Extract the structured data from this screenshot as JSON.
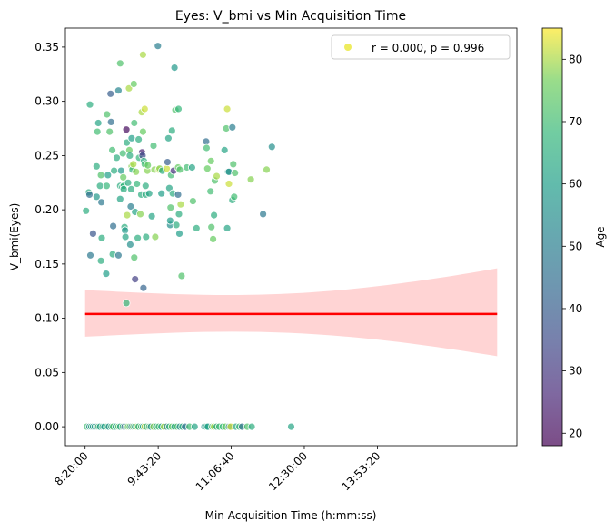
{
  "chart_data": {
    "type": "scatter",
    "title": "Eyes: V_bmi vs Min Acquisition Time",
    "xlabel": "Min Acquisition Time (h:mm:ss)",
    "ylabel": "V_bmi(Eyes)",
    "colorbar_label": "Age",
    "legend": {
      "text": "r = 0.000, p = 0.996",
      "placement": "top-right"
    },
    "xlim": [
      "7:57:30",
      "16:32:30"
    ],
    "ylim": [
      -0.0175,
      0.3675
    ],
    "x_ticks": [
      "8:20:00",
      "9:43:20",
      "11:06:40",
      "12:30:00",
      "13:53:20"
    ],
    "y_ticks": [
      "0.00",
      "0.05",
      "0.10",
      "0.15",
      "0.20",
      "0.25",
      "0.30",
      "0.35"
    ],
    "colorbar": {
      "min": 18,
      "max": 85,
      "ticks": [
        "20",
        "30",
        "40",
        "50",
        "60",
        "70",
        "80"
      ],
      "colormap": "viridis"
    },
    "grid": false,
    "regression": {
      "color": "#ff0000",
      "band_color": "#ffcccc",
      "x": [
        "8:20:00",
        "16:10:00"
      ],
      "y": [
        0.104,
        0.104
      ],
      "ci_lower": [
        0.083,
        0.065
      ],
      "ci_upper": [
        0.126,
        0.146
      ]
    },
    "points": [
      {
        "x": "8:21:00",
        "y": 0.199,
        "age": 65
      },
      {
        "x": "8:24:00",
        "y": 0.216,
        "age": 65
      },
      {
        "x": "8:25:00",
        "y": 0.214,
        "age": 45
      },
      {
        "x": "8:25:30",
        "y": 0.297,
        "age": 65
      },
      {
        "x": "8:26:00",
        "y": 0.158,
        "age": 48
      },
      {
        "x": "8:29:00",
        "y": 0.178,
        "age": 38
      },
      {
        "x": "8:33:00",
        "y": 0.24,
        "age": 65
      },
      {
        "x": "8:33:00",
        "y": 0.212,
        "age": 58
      },
      {
        "x": "8:34:00",
        "y": 0.272,
        "age": 70
      },
      {
        "x": "8:35:00",
        "y": 0.28,
        "age": 62
      },
      {
        "x": "8:37:00",
        "y": 0.222,
        "age": 65
      },
      {
        "x": "8:38:00",
        "y": 0.232,
        "age": 72
      },
      {
        "x": "8:38:00",
        "y": 0.153,
        "age": 65
      },
      {
        "x": "8:38:30",
        "y": 0.207,
        "age": 48
      },
      {
        "x": "8:39:00",
        "y": 0.174,
        "age": 65
      },
      {
        "x": "8:44:00",
        "y": 0.141,
        "age": 60
      },
      {
        "x": "8:44:30",
        "y": 0.222,
        "age": 68
      },
      {
        "x": "8:45:00",
        "y": 0.288,
        "age": 72
      },
      {
        "x": "8:46:00",
        "y": 0.232,
        "age": 60
      },
      {
        "x": "8:48:00",
        "y": 0.272,
        "age": 72
      },
      {
        "x": "8:49:00",
        "y": 0.307,
        "age": 40
      },
      {
        "x": "8:49:30",
        "y": 0.281,
        "age": 45
      },
      {
        "x": "8:51:00",
        "y": 0.255,
        "age": 70
      },
      {
        "x": "8:51:30",
        "y": 0.159,
        "age": 65
      },
      {
        "x": "8:52:00",
        "y": 0.185,
        "age": 45
      },
      {
        "x": "8:53:00",
        "y": 0.236,
        "age": 65
      },
      {
        "x": "8:56:00",
        "y": 0.248,
        "age": 65
      },
      {
        "x": "8:58:00",
        "y": 0.158,
        "age": 48
      },
      {
        "x": "8:58:00",
        "y": 0.31,
        "age": 52
      },
      {
        "x": "9:00:00",
        "y": 0.335,
        "age": 72
      },
      {
        "x": "9:00:00",
        "y": 0.21,
        "age": 62
      },
      {
        "x": "9:00:00",
        "y": 0.222,
        "age": 65
      },
      {
        "x": "9:01:00",
        "y": 0.236,
        "age": 58
      },
      {
        "x": "9:02:30",
        "y": 0.221,
        "age": 65
      },
      {
        "x": "9:03:00",
        "y": 0.252,
        "age": 70
      },
      {
        "x": "9:03:30",
        "y": 0.23,
        "age": 75
      },
      {
        "x": "9:04:00",
        "y": 0.222,
        "age": 68
      },
      {
        "x": "9:04:00",
        "y": 0.219,
        "age": 65
      },
      {
        "x": "9:05:00",
        "y": 0.184,
        "age": 65
      },
      {
        "x": "9:05:30",
        "y": 0.181,
        "age": 58
      },
      {
        "x": "9:06:00",
        "y": 0.175,
        "age": 62
      },
      {
        "x": "9:07:00",
        "y": 0.114,
        "age": 68
      },
      {
        "x": "9:07:00",
        "y": 0.274,
        "age": 20
      },
      {
        "x": "9:07:30",
        "y": 0.262,
        "age": 65
      },
      {
        "x": "9:08:00",
        "y": 0.195,
        "age": 80
      },
      {
        "x": "9:09:00",
        "y": 0.225,
        "age": 65
      },
      {
        "x": "9:10:00",
        "y": 0.312,
        "age": 80
      },
      {
        "x": "9:10:30",
        "y": 0.255,
        "age": 75
      },
      {
        "x": "9:11:00",
        "y": 0.25,
        "age": 65
      },
      {
        "x": "9:11:30",
        "y": 0.168,
        "age": 55
      },
      {
        "x": "9:12:00",
        "y": 0.203,
        "age": 50
      },
      {
        "x": "9:12:30",
        "y": 0.219,
        "age": 65
      },
      {
        "x": "9:13:00",
        "y": 0.24,
        "age": 78
      },
      {
        "x": "9:13:00",
        "y": 0.266,
        "age": 60
      },
      {
        "x": "9:14:00",
        "y": 0.237,
        "age": 68
      },
      {
        "x": "9:15:00",
        "y": 0.242,
        "age": 80
      },
      {
        "x": "9:15:30",
        "y": 0.316,
        "age": 75
      },
      {
        "x": "9:16:00",
        "y": 0.28,
        "age": 70
      },
      {
        "x": "9:16:00",
        "y": 0.156,
        "age": 72
      },
      {
        "x": "9:17:00",
        "y": 0.136,
        "age": 32
      },
      {
        "x": "9:17:00",
        "y": 0.198,
        "age": 62
      },
      {
        "x": "9:18:00",
        "y": 0.235,
        "age": 78
      },
      {
        "x": "9:19:00",
        "y": 0.224,
        "age": 68
      },
      {
        "x": "9:20:00",
        "y": 0.174,
        "age": 65
      },
      {
        "x": "9:21:00",
        "y": 0.265,
        "age": 65
      },
      {
        "x": "9:21:30",
        "y": 0.248,
        "age": 68
      },
      {
        "x": "9:23:00",
        "y": 0.196,
        "age": 78
      },
      {
        "x": "9:24:00",
        "y": 0.214,
        "age": 65
      },
      {
        "x": "9:24:30",
        "y": 0.29,
        "age": 80
      },
      {
        "x": "9:25:00",
        "y": 0.253,
        "age": 25
      },
      {
        "x": "9:25:30",
        "y": 0.25,
        "age": 35
      },
      {
        "x": "9:26:00",
        "y": 0.343,
        "age": 80
      },
      {
        "x": "9:26:00",
        "y": 0.272,
        "age": 75
      },
      {
        "x": "9:26:30",
        "y": 0.128,
        "age": 42
      },
      {
        "x": "9:27:00",
        "y": 0.245,
        "age": 65
      },
      {
        "x": "9:28:00",
        "y": 0.293,
        "age": 82
      },
      {
        "x": "9:28:00",
        "y": 0.242,
        "age": 70
      },
      {
        "x": "9:29:00",
        "y": 0.222,
        "age": 65
      },
      {
        "x": "9:29:00",
        "y": 0.214,
        "age": 65
      },
      {
        "x": "9:29:30",
        "y": 0.175,
        "age": 65
      },
      {
        "x": "9:31:00",
        "y": 0.236,
        "age": 78
      },
      {
        "x": "9:31:30",
        "y": 0.241,
        "age": 75
      },
      {
        "x": "9:33:00",
        "y": 0.215,
        "age": 62
      },
      {
        "x": "9:36:00",
        "y": 0.194,
        "age": 62
      },
      {
        "x": "9:38:00",
        "y": 0.259,
        "age": 70
      },
      {
        "x": "9:39:00",
        "y": 0.237,
        "age": 78
      },
      {
        "x": "9:40:00",
        "y": 0.175,
        "age": 78
      },
      {
        "x": "9:43:00",
        "y": 0.351,
        "age": 50
      },
      {
        "x": "9:44:00",
        "y": 0.237,
        "age": 82
      },
      {
        "x": "9:45:00",
        "y": 0.238,
        "age": 78
      },
      {
        "x": "9:47:00",
        "y": 0.215,
        "age": 60
      },
      {
        "x": "9:48:00",
        "y": 0.236,
        "age": 65
      },
      {
        "x": "9:53:00",
        "y": 0.238,
        "age": 82
      },
      {
        "x": "9:54:00",
        "y": 0.244,
        "age": 40
      },
      {
        "x": "9:55:00",
        "y": 0.266,
        "age": 62
      },
      {
        "x": "9:56:00",
        "y": 0.22,
        "age": 62
      },
      {
        "x": "9:57:00",
        "y": 0.186,
        "age": 55
      },
      {
        "x": "9:57:00",
        "y": 0.19,
        "age": 60
      },
      {
        "x": "9:57:30",
        "y": 0.202,
        "age": 72
      },
      {
        "x": "9:58:00",
        "y": 0.232,
        "age": 70
      },
      {
        "x": "9:59:00",
        "y": 0.273,
        "age": 65
      },
      {
        "x": "10:00:00",
        "y": 0.215,
        "age": 65
      },
      {
        "x": "10:01:00",
        "y": 0.236,
        "age": 28
      },
      {
        "x": "10:02:00",
        "y": 0.331,
        "age": 58
      },
      {
        "x": "10:03:00",
        "y": 0.292,
        "age": 72
      },
      {
        "x": "10:04:00",
        "y": 0.186,
        "age": 65
      },
      {
        "x": "10:06:00",
        "y": 0.239,
        "age": 75
      },
      {
        "x": "10:06:00",
        "y": 0.214,
        "age": 45
      },
      {
        "x": "10:06:30",
        "y": 0.293,
        "age": 68
      },
      {
        "x": "10:07:00",
        "y": 0.196,
        "age": 65
      },
      {
        "x": "10:07:30",
        "y": 0.178,
        "age": 60
      },
      {
        "x": "10:08:00",
        "y": 0.237,
        "age": 72
      },
      {
        "x": "10:09:00",
        "y": 0.205,
        "age": 80
      },
      {
        "x": "10:10:00",
        "y": 0.139,
        "age": 72
      },
      {
        "x": "10:16:00",
        "y": 0.239,
        "age": 70
      },
      {
        "x": "10:22:00",
        "y": 0.239,
        "age": 62
      },
      {
        "x": "10:23:00",
        "y": 0.208,
        "age": 72
      },
      {
        "x": "10:27:00",
        "y": 0.183,
        "age": 65
      },
      {
        "x": "10:38:00",
        "y": 0.263,
        "age": 45
      },
      {
        "x": "10:38:30",
        "y": 0.257,
        "age": 70
      },
      {
        "x": "10:39:30",
        "y": 0.238,
        "age": 75
      },
      {
        "x": "10:43:00",
        "y": 0.217,
        "age": 70
      },
      {
        "x": "10:43:30",
        "y": 0.245,
        "age": 75
      },
      {
        "x": "10:44:00",
        "y": 0.184,
        "age": 72
      },
      {
        "x": "10:46:00",
        "y": 0.173,
        "age": 75
      },
      {
        "x": "10:47:00",
        "y": 0.195,
        "age": 65
      },
      {
        "x": "10:48:00",
        "y": 0.227,
        "age": 72
      },
      {
        "x": "10:50:00",
        "y": 0.231,
        "age": 80
      },
      {
        "x": "10:59:00",
        "y": 0.255,
        "age": 62
      },
      {
        "x": "11:01:00",
        "y": 0.275,
        "age": 72
      },
      {
        "x": "11:02:00",
        "y": 0.183,
        "age": 62
      },
      {
        "x": "11:02:00",
        "y": 0.293,
        "age": 82
      },
      {
        "x": "11:03:00",
        "y": 0.235,
        "age": 62
      },
      {
        "x": "11:04:00",
        "y": 0.224,
        "age": 82
      },
      {
        "x": "11:04:00",
        "y": 0.235,
        "age": 55
      },
      {
        "x": "11:08:00",
        "y": 0.276,
        "age": 50
      },
      {
        "x": "11:08:00",
        "y": 0.209,
        "age": 65
      },
      {
        "x": "11:09:00",
        "y": 0.242,
        "age": 72
      },
      {
        "x": "11:10:00",
        "y": 0.212,
        "age": 70
      },
      {
        "x": "11:11:00",
        "y": 0.234,
        "age": 72
      },
      {
        "x": "11:29:00",
        "y": 0.228,
        "age": 78
      },
      {
        "x": "11:43:00",
        "y": 0.196,
        "age": 48
      },
      {
        "x": "11:47:00",
        "y": 0.237,
        "age": 78
      },
      {
        "x": "11:53:00",
        "y": 0.258,
        "age": 55
      },
      {
        "x": "8:22:00",
        "y": 0,
        "age": 70
      },
      {
        "x": "8:25:00",
        "y": 0,
        "age": 52
      },
      {
        "x": "8:27:00",
        "y": 0,
        "age": 65
      },
      {
        "x": "8:29:00",
        "y": 0,
        "age": 55
      },
      {
        "x": "8:31:00",
        "y": 0,
        "age": 62
      },
      {
        "x": "8:33:00",
        "y": 0,
        "age": 48
      },
      {
        "x": "8:35:00",
        "y": 0,
        "age": 72
      },
      {
        "x": "8:37:00",
        "y": 0,
        "age": 60
      },
      {
        "x": "8:40:00",
        "y": 0,
        "age": 65
      },
      {
        "x": "8:42:00",
        "y": 0,
        "age": 58
      },
      {
        "x": "8:45:00",
        "y": 0,
        "age": 70
      },
      {
        "x": "8:47:00",
        "y": 0,
        "age": 55
      },
      {
        "x": "8:50:00",
        "y": 0,
        "age": 65
      },
      {
        "x": "8:52:00",
        "y": 0,
        "age": 72
      },
      {
        "x": "8:55:00",
        "y": 0,
        "age": 60
      },
      {
        "x": "8:58:00",
        "y": 0,
        "age": 75
      },
      {
        "x": "9:00:00",
        "y": 0,
        "age": 62
      },
      {
        "x": "9:03:00",
        "y": 0,
        "age": 68
      },
      {
        "x": "9:05:00",
        "y": 0,
        "age": 40
      },
      {
        "x": "9:07:00",
        "y": 0,
        "age": 65
      },
      {
        "x": "9:09:00",
        "y": 0,
        "age": 78
      },
      {
        "x": "9:11:00",
        "y": 0,
        "age": 70
      },
      {
        "x": "9:13:00",
        "y": 0,
        "age": 48
      },
      {
        "x": "9:15:00",
        "y": 0,
        "age": 75
      },
      {
        "x": "9:17:00",
        "y": 0,
        "age": 62
      },
      {
        "x": "9:19:00",
        "y": 0,
        "age": 80
      },
      {
        "x": "9:21:00",
        "y": 0,
        "age": 65
      },
      {
        "x": "9:24:00",
        "y": 0,
        "age": 70
      },
      {
        "x": "9:26:00",
        "y": 0,
        "age": 58
      },
      {
        "x": "9:28:00",
        "y": 0,
        "age": 82
      },
      {
        "x": "9:30:00",
        "y": 0,
        "age": 65
      },
      {
        "x": "9:33:00",
        "y": 0,
        "age": 72
      },
      {
        "x": "9:35:00",
        "y": 0,
        "age": 55
      },
      {
        "x": "9:38:00",
        "y": 0,
        "age": 78
      },
      {
        "x": "9:41:00",
        "y": 0,
        "age": 65
      },
      {
        "x": "9:44:00",
        "y": 0,
        "age": 70
      },
      {
        "x": "9:47:00",
        "y": 0,
        "age": 62
      },
      {
        "x": "9:50:00",
        "y": 0,
        "age": 80
      },
      {
        "x": "9:53:00",
        "y": 0,
        "age": 50
      },
      {
        "x": "9:56:00",
        "y": 0,
        "age": 68
      },
      {
        "x": "9:59:00",
        "y": 0,
        "age": 75
      },
      {
        "x": "10:02:00",
        "y": 0,
        "age": 62
      },
      {
        "x": "10:05:00",
        "y": 0,
        "age": 72
      },
      {
        "x": "10:08:00",
        "y": 0,
        "age": 55
      },
      {
        "x": "10:11:00",
        "y": 0,
        "age": 65
      },
      {
        "x": "10:14:00",
        "y": 0,
        "age": 45
      },
      {
        "x": "10:19:00",
        "y": 0,
        "age": 70
      },
      {
        "x": "10:25:00",
        "y": 0,
        "age": 62
      },
      {
        "x": "10:36:00",
        "y": 0,
        "age": 55
      },
      {
        "x": "10:38:00",
        "y": 0,
        "age": 65
      },
      {
        "x": "10:40:00",
        "y": 0,
        "age": 60
      },
      {
        "x": "10:45:00",
        "y": 0,
        "age": 72
      },
      {
        "x": "10:47:00",
        "y": 0,
        "age": 80
      },
      {
        "x": "10:50:00",
        "y": 0,
        "age": 62
      },
      {
        "x": "10:53:00",
        "y": 0,
        "age": 70
      },
      {
        "x": "10:57:00",
        "y": 0,
        "age": 68
      },
      {
        "x": "11:00:00",
        "y": 0,
        "age": 75
      },
      {
        "x": "11:04:00",
        "y": 0,
        "age": 50
      },
      {
        "x": "11:06:00",
        "y": 0,
        "age": 82
      },
      {
        "x": "11:12:00",
        "y": 0,
        "age": 62
      },
      {
        "x": "11:16:00",
        "y": 0,
        "age": 70
      },
      {
        "x": "11:19:00",
        "y": 0,
        "age": 45
      },
      {
        "x": "11:25:00",
        "y": 0,
        "age": 72
      },
      {
        "x": "11:30:00",
        "y": 0,
        "age": 65
      },
      {
        "x": "12:15:00",
        "y": 0,
        "age": 62
      }
    ]
  }
}
